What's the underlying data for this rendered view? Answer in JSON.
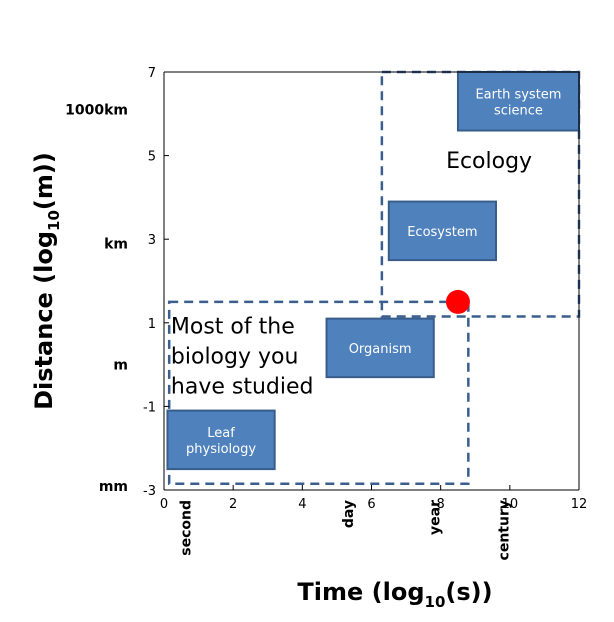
{
  "chart_data": {
    "type": "scatter",
    "xlabel": {
      "main": "Time (log",
      "sub": "10",
      "tail": "(s))"
    },
    "ylabel": {
      "main": "Distance (log",
      "sub": "10",
      "tail": "(m))"
    },
    "xlim": [
      0,
      12
    ],
    "ylim": [
      -3,
      7
    ],
    "x_ticks": [
      {
        "value": 0,
        "label": "0"
      },
      {
        "value": 2,
        "label": "2"
      },
      {
        "value": 4,
        "label": "4"
      },
      {
        "value": 6,
        "label": "6"
      },
      {
        "value": 8,
        "label": "8"
      },
      {
        "value": 10,
        "label": "10"
      },
      {
        "value": 12,
        "label": "12"
      }
    ],
    "y_ticks": [
      {
        "value": -3,
        "label": "-3"
      },
      {
        "value": -1,
        "label": "-1"
      },
      {
        "value": 1,
        "label": "1"
      },
      {
        "value": 3,
        "label": "3"
      },
      {
        "value": 5,
        "label": "5"
      },
      {
        "value": 7,
        "label": "7"
      }
    ],
    "x_unit_labels": [
      {
        "value": 0.3,
        "label": "second"
      },
      {
        "value": 5.0,
        "label": "day"
      },
      {
        "value": 7.5,
        "label": "year"
      },
      {
        "value": 9.5,
        "label": "century"
      }
    ],
    "y_unit_labels": [
      {
        "value": 6.1,
        "label": "1000km"
      },
      {
        "value": 2.9,
        "label": "km"
      },
      {
        "value": 0.0,
        "label": "m"
      },
      {
        "value": -2.9,
        "label": "mm"
      }
    ],
    "boxes": [
      {
        "name": "leaf-physiology",
        "lines": [
          "Leaf",
          "physiology"
        ],
        "x": [
          0.1,
          3.2
        ],
        "y": [
          -2.5,
          -1.1
        ]
      },
      {
        "name": "organism",
        "lines": [
          "Organism"
        ],
        "x": [
          4.7,
          7.8
        ],
        "y": [
          -0.3,
          1.1
        ]
      },
      {
        "name": "ecosystem",
        "lines": [
          "Ecosystem"
        ],
        "x": [
          6.5,
          9.6
        ],
        "y": [
          2.5,
          3.9
        ]
      },
      {
        "name": "earth-system-science",
        "lines": [
          "Earth system",
          "science"
        ],
        "x": [
          8.5,
          12.0
        ],
        "y": [
          5.6,
          7.0
        ]
      }
    ],
    "regions": [
      {
        "name": "ecology-region",
        "label_lines": [
          "Ecology"
        ],
        "x": [
          6.3,
          12.0
        ],
        "y": [
          1.15,
          7.0
        ],
        "label_at": [
          9.4,
          4.7
        ]
      },
      {
        "name": "studied-region",
        "label_lines": [
          "Most of the",
          "biology you",
          "have studied"
        ],
        "x": [
          0.15,
          8.8
        ],
        "y": [
          -2.85,
          1.5
        ],
        "label_at": [
          0.2,
          0.75
        ]
      }
    ],
    "points": [
      {
        "name": "red-dot",
        "x": 8.5,
        "y": 1.5,
        "color": "#ff0000"
      }
    ],
    "box_color": "#4f81bd",
    "box_border": "#385d8a",
    "dash_color": "#3a5f8f"
  }
}
